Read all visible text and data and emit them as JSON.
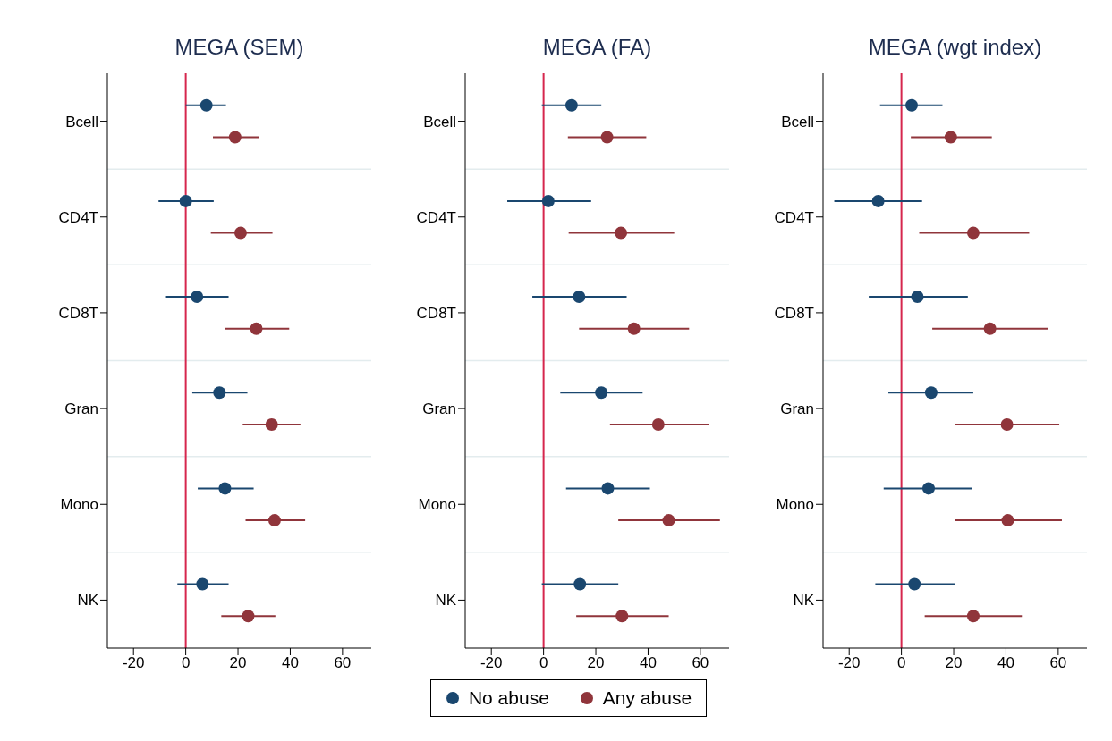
{
  "chart_data": [
    {
      "type": "scatter",
      "title": "MEGA (SEM)",
      "orientation": "horizontal",
      "categories": [
        "Bcell",
        "CD4T",
        "CD8T",
        "Gran",
        "Mono",
        "NK"
      ],
      "marker": "circle",
      "grid": "y",
      "legend": "bottom",
      "xlim": [
        -30,
        71
      ],
      "xticks": [
        -20,
        0,
        20,
        40,
        60
      ],
      "ref_lines": [
        {
          "axis": "x",
          "value": 0,
          "color": "#d6264d"
        }
      ],
      "series": [
        {
          "name": "No abuse",
          "color": "#1a476f",
          "values": [
            7.9,
            0,
            4.3,
            12.9,
            15,
            6.4
          ],
          "errors": [
            [
              0,
              15.4
            ],
            [
              -10.4,
              10.7
            ],
            [
              -7.9,
              16.4
            ],
            [
              2.5,
              23.6
            ],
            [
              4.6,
              26
            ],
            [
              -3.2,
              16.4
            ]
          ]
        },
        {
          "name": "Any abuse",
          "color": "#90353b",
          "values": [
            18.9,
            21,
            27,
            32.9,
            34,
            23.9
          ],
          "errors": [
            [
              10.4,
              27.9
            ],
            [
              9.6,
              33.2
            ],
            [
              15,
              39.6
            ],
            [
              21.8,
              43.9
            ],
            [
              22.9,
              45.7
            ],
            [
              13.6,
              34.3
            ]
          ]
        }
      ]
    },
    {
      "type": "scatter",
      "title": "MEGA (FA)",
      "orientation": "horizontal",
      "categories": [
        "Bcell",
        "CD4T",
        "CD8T",
        "Gran",
        "Mono",
        "NK"
      ],
      "marker": "circle",
      "grid": "y",
      "legend": "bottom",
      "xlim": [
        -30,
        71
      ],
      "xticks": [
        -20,
        0,
        20,
        40,
        60
      ],
      "ref_lines": [
        {
          "axis": "x",
          "value": 0,
          "color": "#d6264d"
        }
      ],
      "series": [
        {
          "name": "No abuse",
          "color": "#1a476f",
          "values": [
            10.7,
            1.8,
            13.6,
            22.1,
            24.6,
            13.9
          ],
          "errors": [
            [
              -0.7,
              22.1
            ],
            [
              -13.9,
              18.2
            ],
            [
              -4.3,
              31.8
            ],
            [
              6.4,
              37.9
            ],
            [
              8.6,
              40.7
            ],
            [
              -0.7,
              28.6
            ]
          ]
        },
        {
          "name": "Any abuse",
          "color": "#90353b",
          "values": [
            24.3,
            29.6,
            34.6,
            43.9,
            47.9,
            30
          ],
          "errors": [
            [
              9.3,
              39.3
            ],
            [
              9.6,
              50
            ],
            [
              13.6,
              55.7
            ],
            [
              25.4,
              63.2
            ],
            [
              28.6,
              67.5
            ],
            [
              12.5,
              47.9
            ]
          ]
        }
      ]
    },
    {
      "type": "scatter",
      "title": "MEGA (wgt index)",
      "orientation": "horizontal",
      "categories": [
        "Bcell",
        "CD4T",
        "CD8T",
        "Gran",
        "Mono",
        "NK"
      ],
      "marker": "circle",
      "grid": "y",
      "legend": "bottom",
      "xlim": [
        -30,
        71
      ],
      "xticks": [
        -20,
        0,
        20,
        40,
        60
      ],
      "ref_lines": [
        {
          "axis": "x",
          "value": 0,
          "color": "#d6264d"
        }
      ],
      "series": [
        {
          "name": "No abuse",
          "color": "#1a476f",
          "values": [
            3.9,
            -8.9,
            6.1,
            11.4,
            10.4,
            5
          ],
          "errors": [
            [
              -8.2,
              15.7
            ],
            [
              -25.7,
              7.9
            ],
            [
              -12.5,
              25.4
            ],
            [
              -5,
              27.5
            ],
            [
              -6.8,
              27.1
            ],
            [
              -10,
              20.4
            ]
          ]
        },
        {
          "name": "Any abuse",
          "color": "#90353b",
          "values": [
            18.9,
            27.5,
            33.9,
            40.4,
            40.7,
            27.5
          ],
          "errors": [
            [
              3.6,
              34.6
            ],
            [
              6.8,
              48.9
            ],
            [
              11.8,
              56.1
            ],
            [
              20.4,
              60.4
            ],
            [
              20.4,
              61.4
            ],
            [
              8.9,
              46.1
            ]
          ]
        }
      ]
    }
  ]
}
